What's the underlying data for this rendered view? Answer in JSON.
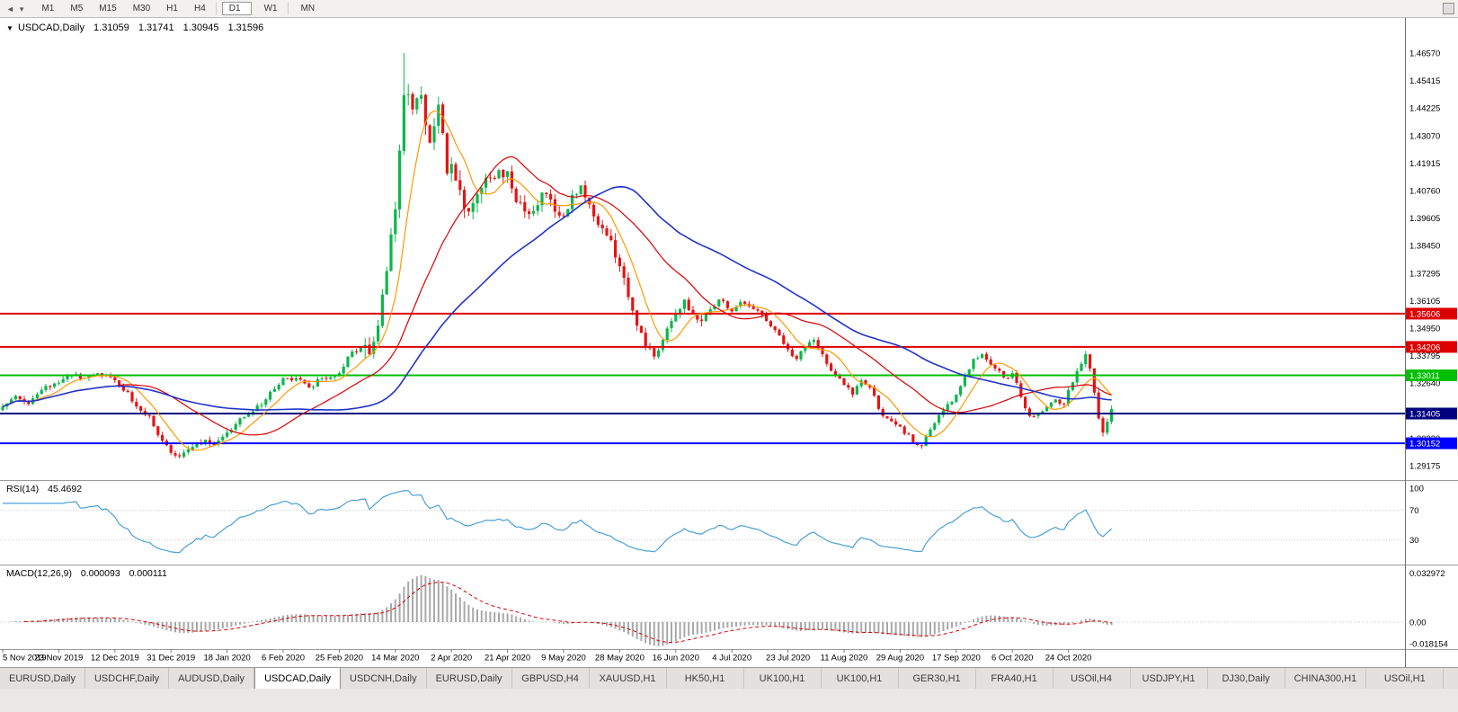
{
  "toolbar": {
    "nav_icons": [
      "◄",
      "▾"
    ],
    "timeframes": [
      {
        "label": "M1"
      },
      {
        "label": "M5"
      },
      {
        "label": "M15"
      },
      {
        "label": "M30"
      },
      {
        "label": "H1"
      },
      {
        "label": "H4",
        "sep_after": true
      },
      {
        "label": "D1",
        "active": true,
        "sep_after": true
      },
      {
        "label": "W1",
        "sep_after": true
      },
      {
        "label": "MN"
      }
    ]
  },
  "chart_header": {
    "dropdown_icon": "▼",
    "symbol": "USDCAD,Daily",
    "open": "1.31059",
    "high": "1.31741",
    "low": "1.30945",
    "close": "1.31596"
  },
  "rsi_panel": {
    "name": "RSI(14)",
    "value": "45.4692"
  },
  "macd_panel": {
    "name": "MACD(12,26,9)",
    "value1": "0.000093",
    "value2": "0.000111"
  },
  "tabs": [
    {
      "label": "EURUSD,Daily"
    },
    {
      "label": "USDCHF,Daily"
    },
    {
      "label": "AUDUSD,Daily"
    },
    {
      "label": "USDCAD,Daily",
      "active": true
    },
    {
      "label": "USDCNH,Daily"
    },
    {
      "label": "EURUSD,Daily"
    },
    {
      "label": "GBPUSD,H4"
    },
    {
      "label": "XAUUSD,H1"
    },
    {
      "label": "HK50,H1"
    },
    {
      "label": "UK100,H1"
    },
    {
      "label": "UK100,H1"
    },
    {
      "label": "GER30,H1"
    },
    {
      "label": "FRA40,H1"
    },
    {
      "label": "USOil,H4"
    },
    {
      "label": "USDJPY,H1"
    },
    {
      "label": "DJ30,Daily"
    },
    {
      "label": "CHINA300,H1"
    },
    {
      "label": "USOil,H1"
    }
  ],
  "chart_data": {
    "type": "candlestick",
    "symbol": "USDCAD",
    "timeframe": "Daily",
    "last_bar": {
      "open": 1.31059,
      "high": 1.31741,
      "low": 1.30945,
      "close": 1.31596
    },
    "price_ticks": [
      "1.46570",
      "1.45415",
      "1.44225",
      "1.43070",
      "1.41915",
      "1.40760",
      "1.39605",
      "1.38450",
      "1.37295",
      "1.36105",
      "1.34950",
      "1.33795",
      "1.32640",
      "1.31485",
      "1.30330",
      "1.29175"
    ],
    "date_ticks": [
      "5 Nov 2019",
      "23 Nov 2019",
      "12 Dec 2019",
      "31 Dec 2019",
      "18 Jan 2020",
      "6 Feb 2020",
      "25 Feb 2020",
      "14 Mar 2020",
      "2 Apr 2020",
      "21 Apr 2020",
      "9 May 2020",
      "28 May 2020",
      "16 Jun 2020",
      "4 Jul 2020",
      "23 Jul 2020",
      "11 Aug 2020",
      "29 Aug 2020",
      "17 Sep 2020",
      "6 Oct 2020",
      "24 Oct 2020"
    ],
    "bars_per_tick": 13,
    "num_bars": 258,
    "ylim": [
      1.2853,
      1.4805
    ],
    "close_anchors": [
      [
        0,
        1.317
      ],
      [
        3,
        1.3215
      ],
      [
        6,
        1.318
      ],
      [
        9,
        1.324
      ],
      [
        13,
        1.327
      ],
      [
        16,
        1.33
      ],
      [
        19,
        1.329
      ],
      [
        22,
        1.331
      ],
      [
        26,
        1.328
      ],
      [
        29,
        1.323
      ],
      [
        31,
        1.317
      ],
      [
        34,
        1.313
      ],
      [
        36,
        1.305
      ],
      [
        39,
        1.2975
      ],
      [
        41,
        1.296
      ],
      [
        44,
        1.3
      ],
      [
        47,
        1.303
      ],
      [
        49,
        1.301
      ],
      [
        52,
        1.306
      ],
      [
        55,
        1.312
      ],
      [
        58,
        1.315
      ],
      [
        61,
        1.32
      ],
      [
        65,
        1.329
      ],
      [
        68,
        1.329
      ],
      [
        71,
        1.325
      ],
      [
        74,
        1.329
      ],
      [
        78,
        1.331
      ],
      [
        80,
        1.338
      ],
      [
        83,
        1.342
      ],
      [
        85,
        1.339
      ],
      [
        87,
        1.351
      ],
      [
        89,
        1.374
      ],
      [
        91,
        1.4
      ],
      [
        93,
        1.448
      ],
      [
        95,
        1.442
      ],
      [
        97,
        1.448
      ],
      [
        99,
        1.428
      ],
      [
        101,
        1.444
      ],
      [
        103,
        1.415
      ],
      [
        104,
        1.419
      ],
      [
        106,
        1.408
      ],
      [
        108,
        1.399
      ],
      [
        111,
        1.409
      ],
      [
        114,
        1.413
      ],
      [
        117,
        1.416
      ],
      [
        119,
        1.403
      ],
      [
        122,
        1.398
      ],
      [
        125,
        1.407
      ],
      [
        128,
        1.399
      ],
      [
        130,
        1.397
      ],
      [
        132,
        1.406
      ],
      [
        134,
        1.41
      ],
      [
        136,
        1.402
      ],
      [
        139,
        1.392
      ],
      [
        141,
        1.387
      ],
      [
        143,
        1.376
      ],
      [
        145,
        1.363
      ],
      [
        147,
        1.351
      ],
      [
        149,
        1.342
      ],
      [
        151,
        1.338
      ],
      [
        153,
        1.345
      ],
      [
        156,
        1.356
      ],
      [
        158,
        1.362
      ],
      [
        160,
        1.356
      ],
      [
        162,
        1.353
      ],
      [
        164,
        1.358
      ],
      [
        166,
        1.362
      ],
      [
        169,
        1.357
      ],
      [
        171,
        1.361
      ],
      [
        174,
        1.358
      ],
      [
        177,
        1.353
      ],
      [
        180,
        1.347
      ],
      [
        182,
        1.341
      ],
      [
        184,
        1.337
      ],
      [
        186,
        1.342
      ],
      [
        188,
        1.345
      ],
      [
        190,
        1.339
      ],
      [
        193,
        1.33
      ],
      [
        195,
        1.326
      ],
      [
        197,
        1.322
      ],
      [
        199,
        1.328
      ],
      [
        201,
        1.325
      ],
      [
        203,
        1.316
      ],
      [
        205,
        1.312
      ],
      [
        208,
        1.3085
      ],
      [
        211,
        1.302
      ],
      [
        213,
        1.3005
      ],
      [
        216,
        1.31
      ],
      [
        219,
        1.318
      ],
      [
        221,
        1.322
      ],
      [
        223,
        1.33
      ],
      [
        225,
        1.337
      ],
      [
        227,
        1.339
      ],
      [
        230,
        1.333
      ],
      [
        233,
        1.329
      ],
      [
        234,
        1.331
      ],
      [
        236,
        1.321
      ],
      [
        238,
        1.313
      ],
      [
        241,
        1.315
      ],
      [
        244,
        1.32
      ],
      [
        246,
        1.318
      ],
      [
        247,
        1.324
      ],
      [
        249,
        1.332
      ],
      [
        251,
        1.339
      ],
      [
        252,
        1.333
      ],
      [
        254,
        1.312
      ],
      [
        255,
        1.306
      ],
      [
        256,
        1.3106
      ],
      [
        257,
        1.31596
      ]
    ],
    "extremes": {
      "high": 1.4657,
      "high_bar": 93,
      "low": 1.2951,
      "low_bar": 41,
      "low2": 1.2992,
      "low2_bar": 213
    },
    "horizontal_lines": [
      {
        "price": 1.35606,
        "label": "1.35606",
        "color": "#dd0000"
      },
      {
        "price": 1.34206,
        "label": "1.34206",
        "color": "#dd0000"
      },
      {
        "price": 1.33011,
        "label": "1.33011",
        "color": "#00c000"
      },
      {
        "price": 1.31405,
        "label": "1.31405",
        "color": "#000080"
      },
      {
        "price": 1.30152,
        "label": "1.30152",
        "color": "#0000ff"
      }
    ],
    "moving_averages": [
      {
        "period": 8,
        "color": "#ff9900"
      },
      {
        "period": 27,
        "color": "#dd0000"
      },
      {
        "period": 55,
        "color": "#2233cc"
      }
    ],
    "candle_colors": {
      "up": "#0cb64b",
      "down": "#e51414"
    },
    "rsi": {
      "period": 14,
      "levels": [
        "100",
        "70",
        "30"
      ],
      "color": "#4aa0d8",
      "last_value": 45.4692
    },
    "macd": {
      "fast": 12,
      "slow": 26,
      "signal": 9,
      "hist_color": "#a8a8a8",
      "signal_color": "#dd0000",
      "scale_labels": [
        "0.032972",
        "0.00",
        "-0.018154"
      ]
    }
  }
}
